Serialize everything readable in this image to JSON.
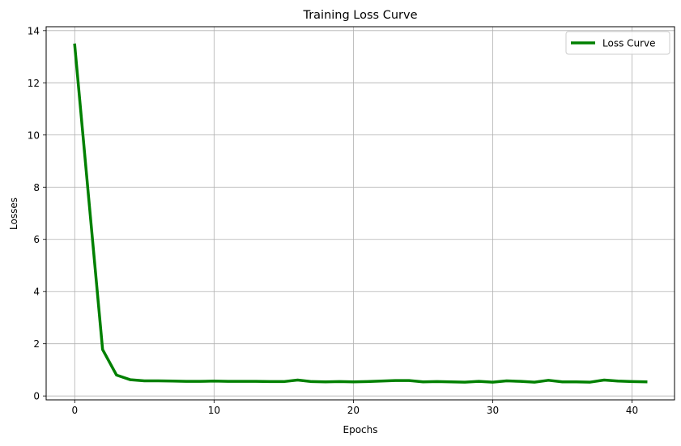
{
  "chart_data": {
    "type": "line",
    "title": "Training Loss Curve",
    "xlabel": "Epochs",
    "ylabel": "Losses",
    "xlim": [
      -2.05,
      43.05
    ],
    "ylim": [
      -0.15,
      14.15
    ],
    "xticks": [
      0,
      10,
      20,
      30,
      40
    ],
    "yticks": [
      0,
      2,
      4,
      6,
      8,
      10,
      12,
      14
    ],
    "grid": true,
    "legend": {
      "placement": "top-right"
    },
    "series": [
      {
        "name": "Loss Curve",
        "color": "#008000",
        "x": [
          0,
          1,
          2,
          3,
          4,
          5,
          6,
          7,
          8,
          9,
          10,
          11,
          12,
          13,
          14,
          15,
          16,
          17,
          18,
          19,
          20,
          21,
          22,
          23,
          24,
          25,
          26,
          27,
          28,
          29,
          30,
          31,
          32,
          33,
          34,
          35,
          36,
          37,
          38,
          39,
          40,
          41
        ],
        "values": [
          13.45,
          7.6,
          1.78,
          0.8,
          0.62,
          0.58,
          0.58,
          0.57,
          0.56,
          0.56,
          0.57,
          0.56,
          0.56,
          0.56,
          0.55,
          0.55,
          0.61,
          0.55,
          0.54,
          0.55,
          0.54,
          0.55,
          0.57,
          0.59,
          0.59,
          0.54,
          0.55,
          0.54,
          0.53,
          0.56,
          0.53,
          0.58,
          0.56,
          0.53,
          0.6,
          0.54,
          0.54,
          0.53,
          0.61,
          0.57,
          0.55,
          0.54
        ]
      }
    ]
  }
}
